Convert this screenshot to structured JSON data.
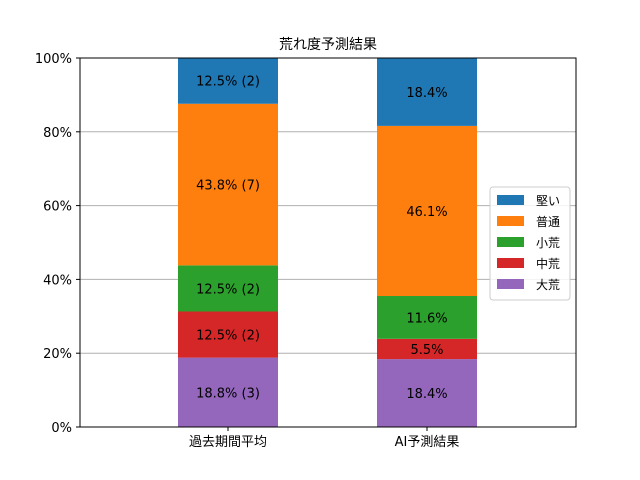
{
  "chart_data": {
    "type": "bar",
    "stacked": true,
    "title": "荒れ度予測結果",
    "xlabel": "",
    "ylabel": "",
    "categories": [
      "過去期間平均",
      "AI予測結果"
    ],
    "ylim": [
      0,
      100
    ],
    "yticks": [
      0,
      20,
      40,
      60,
      80,
      100
    ],
    "ytick_labels": [
      "0%",
      "20%",
      "40%",
      "60%",
      "80%",
      "100%"
    ],
    "grid": "y",
    "legend_position": "right",
    "series": [
      {
        "name": "大荒",
        "color": "#9467bd",
        "values": [
          18.8,
          18.4
        ],
        "labels": [
          "18.8% (3)",
          "18.4%"
        ]
      },
      {
        "name": "中荒",
        "color": "#d62728",
        "values": [
          12.5,
          5.5
        ],
        "labels": [
          "12.5% (2)",
          "5.5%"
        ]
      },
      {
        "name": "小荒",
        "color": "#2ca02c",
        "values": [
          12.5,
          11.6
        ],
        "labels": [
          "12.5% (2)",
          "11.6%"
        ]
      },
      {
        "name": "普通",
        "color": "#ff7f0e",
        "values": [
          43.8,
          46.1
        ],
        "labels": [
          "43.8% (7)",
          "46.1%"
        ]
      },
      {
        "name": "堅い",
        "color": "#1f77b4",
        "values": [
          12.5,
          18.4
        ],
        "labels": [
          "12.5% (2)",
          "18.4%"
        ]
      }
    ],
    "legend_order": [
      "堅い",
      "普通",
      "小荒",
      "中荒",
      "大荒"
    ]
  }
}
